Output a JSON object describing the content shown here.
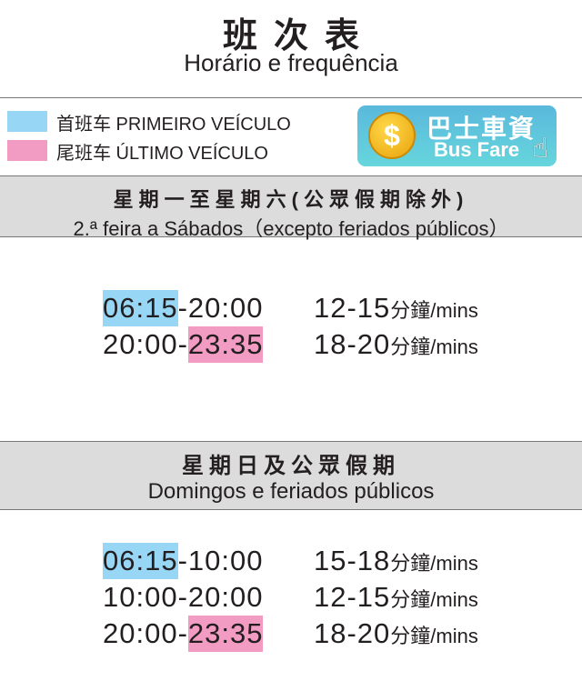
{
  "header": {
    "title": "班次表",
    "subtitle": "Horário e frequência"
  },
  "legend": [
    {
      "label": "首班车 PRIMEIRO VEÍCULO",
      "color": "#97d6f5"
    },
    {
      "label": "尾班车 ÚLTIMO VEÍCULO",
      "color": "#f29bc3"
    }
  ],
  "fare_button": {
    "cn": "巴士車資",
    "en": "Bus Fare",
    "icon": "coin-dollar-icon",
    "pointer": "hand-pointer-icon"
  },
  "sections": [
    {
      "title_cn": "星期一至星期六(公眾假期除外)",
      "title_pt": "2.ª feira a Sábados（excepto feriados públicos）",
      "rows": [
        {
          "start": "06:15",
          "end": "20:00",
          "freq": "12-15",
          "unit": "分鐘/mins",
          "first": true,
          "last": false
        },
        {
          "start": "20:00",
          "end": "23:35",
          "freq": "18-20",
          "unit": "分鐘/mins",
          "first": false,
          "last": true
        }
      ]
    },
    {
      "title_cn": "星期日及公眾假期",
      "title_pt": "Domingos e feriados públicos",
      "rows": [
        {
          "start": "06:15",
          "end": "10:00",
          "freq": "15-18",
          "unit": "分鐘/mins",
          "first": true,
          "last": false
        },
        {
          "start": "10:00",
          "end": "20:00",
          "freq": "12-15",
          "unit": "分鐘/mins",
          "first": false,
          "last": false
        },
        {
          "start": "20:00",
          "end": "23:35",
          "freq": "18-20",
          "unit": "分鐘/mins",
          "first": false,
          "last": true
        }
      ]
    }
  ]
}
